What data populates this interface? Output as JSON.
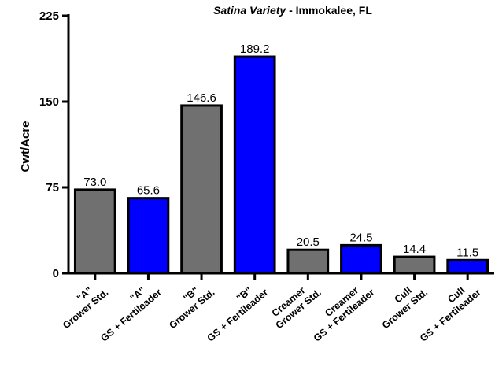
{
  "chart_data": {
    "type": "bar",
    "title_italic": "Satina Variety",
    "title_rest": " - Immokalee, FL",
    "ylabel": "Cwt/Acre",
    "xlabel": "",
    "ylim": [
      0,
      225
    ],
    "yticks": [
      "0",
      "75",
      "150",
      "225"
    ],
    "ytick_values": [
      0,
      75,
      150,
      225
    ],
    "categories": [
      [
        "\"A\"",
        "Grower Std."
      ],
      [
        "\"A\"",
        "GS + Fertileader"
      ],
      [
        "\"B\"",
        "Grower Std."
      ],
      [
        "\"B\"",
        "GS + Fertileader"
      ],
      [
        "Creamer",
        "Grower Std."
      ],
      [
        "Creamer",
        "GS + Fertileader"
      ],
      [
        "Cull",
        "Grower Std."
      ],
      [
        "Cull",
        "GS + Fertileader"
      ]
    ],
    "values": [
      73.0,
      65.6,
      146.6,
      189.2,
      20.5,
      24.5,
      14.4,
      11.5
    ],
    "data_labels": [
      "73.0",
      "65.6",
      "146.6",
      "189.2",
      "20.5",
      "24.5",
      "14.4",
      "11.5"
    ],
    "bar_colors": [
      "#707070",
      "#0000ff",
      "#707070",
      "#0000ff",
      "#707070",
      "#0000ff",
      "#707070",
      "#0000ff"
    ],
    "grid": false
  }
}
